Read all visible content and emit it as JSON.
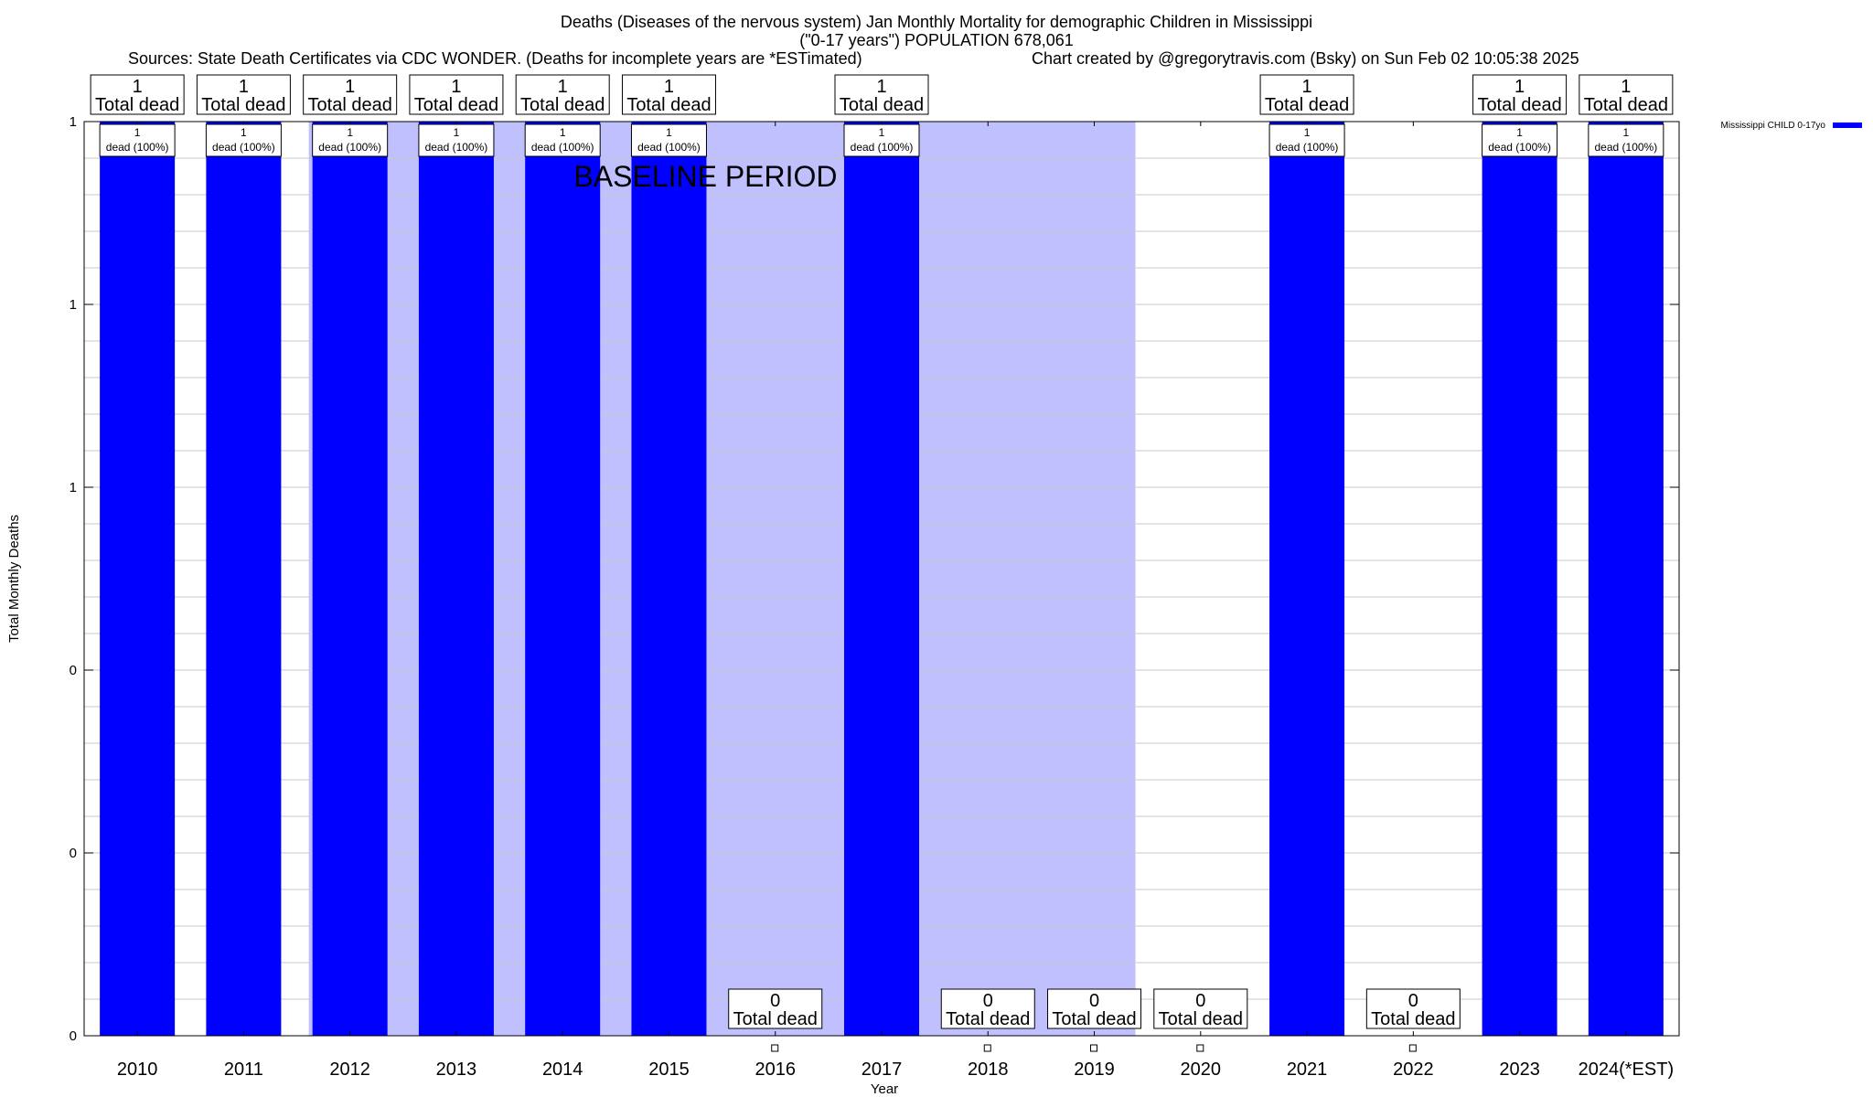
{
  "header": {
    "title_line1": "Deaths (Diseases of the nervous system) Jan Monthly Mortality for demographic Children in Mississippi",
    "title_line2": "(\"0-17 years\") POPULATION 678,061",
    "sources": "Sources: State Death Certificates via CDC WONDER. (Deaths for incomplete years are *ESTimated)",
    "credit": "Chart created by @gregorytravis.com (Bsky) on Sun Feb 02 10:05:38 2025"
  },
  "colors": {
    "bar": "#0000ff",
    "baseline_band": "#c0c0ff",
    "grid": "#c8c8c8"
  },
  "chart_data": {
    "type": "bar",
    "xlabel": "Year",
    "ylabel": "Total Monthly Deaths",
    "ylim": [
      0,
      1
    ],
    "yticks": [
      0,
      0.2,
      0.4,
      0.6,
      0.8,
      1
    ],
    "ytick_labels": [
      "0",
      "0",
      "0",
      "1",
      "1",
      "1"
    ],
    "grid": true,
    "legend_position": "top-right",
    "categories": [
      "2010",
      "2011",
      "2012",
      "2013",
      "2014",
      "2015",
      "2016",
      "2017",
      "2018",
      "2019",
      "2020",
      "2021",
      "2022",
      "2023",
      "2024(*EST)"
    ],
    "series": [
      {
        "name": "Mississippi CHILD 0-17yo",
        "values": [
          1,
          1,
          1,
          1,
          1,
          1,
          0,
          1,
          0,
          0,
          0,
          1,
          0,
          1,
          1
        ]
      }
    ],
    "top_labels": [
      "1\nTotal dead",
      "1\nTotal dead",
      "1\nTotal dead",
      "1\nTotal dead",
      "1\nTotal dead",
      "1\nTotal dead",
      "0\nTotal dead",
      "1\nTotal dead",
      "0\nTotal dead",
      "0\nTotal dead",
      "0\nTotal dead",
      "1\nTotal dead",
      "0\nTotal dead",
      "1\nTotal dead",
      "1\nTotal dead"
    ],
    "inner_labels": [
      "1\ndead (100%)",
      "1\ndead (100%)",
      "1\ndead (100%)",
      "1\ndead (100%)",
      "1\ndead (100%)",
      "1\ndead (100%)",
      "",
      "1\ndead (100%)",
      "",
      "",
      "",
      "1\ndead (100%)",
      "",
      "1\ndead (100%)",
      "1\ndead (100%)"
    ],
    "baseline_annotation": "BASELINE PERIOD",
    "baseline_categories": [
      "2012",
      "2013",
      "2014",
      "2015",
      "2016",
      "2017",
      "2018",
      "2019"
    ]
  }
}
